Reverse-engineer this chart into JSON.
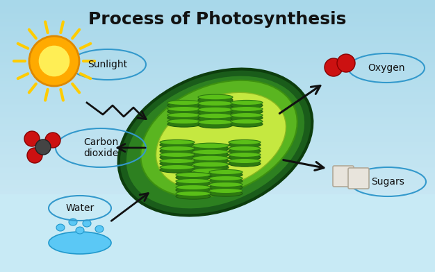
{
  "title": "Process of Photosynthesis",
  "title_fontsize": 18,
  "title_fontweight": "bold",
  "title_color": "#111111",
  "labels": {
    "sunlight": "Sunlight",
    "carbon_dioxide": "Carbon\ndioxide",
    "water": "Water",
    "oxygen": "Oxygen",
    "sugars": "Sugars"
  },
  "label_fontsize": 10,
  "label_color": "#111111",
  "arrow_color": "#111111",
  "bubble_edge_color": "#3399cc",
  "bubble_fill": "#add8e6",
  "bubble_alpha": 0.18,
  "sun_outer": "#ffaa00",
  "sun_inner": "#ffee55",
  "sun_ray": "#ffcc00",
  "oxygen_color": "#cc1111",
  "co2_carbon": "#444444",
  "co2_oxygen": "#cc1111",
  "chloro_outer": "#1a5c1a",
  "chloro_mid": "#2d8020",
  "chloro_inner": "#5ab520",
  "chloro_pale": "#c5e840",
  "thylakoid_top": "#5abf18",
  "thylakoid_rim": "#2d7a10",
  "thylakoid_dark": "#1e5c10"
}
